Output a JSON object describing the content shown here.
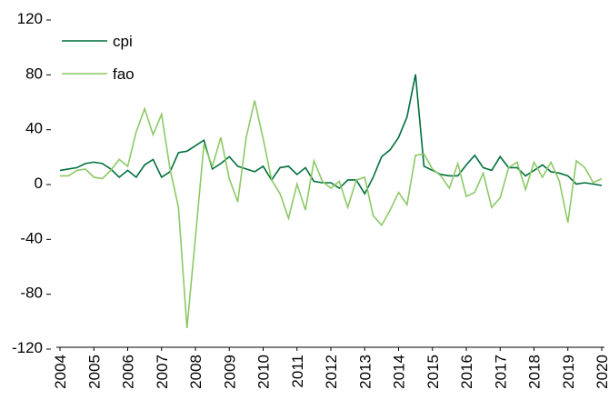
{
  "chart_data": {
    "type": "line",
    "x": [
      2004,
      2004.25,
      2004.5,
      2004.75,
      2005,
      2005.25,
      2005.5,
      2005.75,
      2006,
      2006.25,
      2006.5,
      2006.75,
      2007,
      2007.25,
      2007.5,
      2007.75,
      2008,
      2008.25,
      2008.5,
      2008.75,
      2009,
      2009.25,
      2009.5,
      2009.75,
      2010,
      2010.25,
      2010.5,
      2010.75,
      2011,
      2011.25,
      2011.5,
      2011.75,
      2012,
      2012.25,
      2012.5,
      2012.75,
      2013,
      2013.25,
      2013.5,
      2013.75,
      2014,
      2014.25,
      2014.5,
      2014.75,
      2015,
      2015.25,
      2015.5,
      2015.75,
      2016,
      2016.25,
      2016.5,
      2016.75,
      2017,
      2017.25,
      2017.5,
      2017.75,
      2018,
      2018.25,
      2018.5,
      2018.75,
      2019,
      2019.25,
      2019.5,
      2019.75,
      2020
    ],
    "series": [
      {
        "name": "cpi",
        "color": "#00703c",
        "values": [
          9,
          10,
          11,
          14,
          15,
          14,
          10,
          4,
          9,
          4,
          13,
          17,
          4,
          8,
          22,
          23,
          27,
          31,
          10,
          14,
          19,
          12,
          10,
          8,
          12,
          2,
          11,
          12,
          6,
          11,
          1,
          0,
          0,
          -4,
          2,
          2,
          -8,
          4,
          19,
          24,
          33,
          48,
          79,
          12,
          9,
          6,
          5,
          5,
          13,
          20,
          11,
          9,
          19,
          11,
          11,
          5,
          9,
          13,
          8,
          7,
          5,
          -1,
          0,
          -1,
          -2
        ]
      },
      {
        "name": "fao",
        "color": "#8cc966",
        "values": [
          5,
          5,
          9,
          10,
          4,
          3,
          9,
          17,
          12,
          37,
          54,
          35,
          50,
          10,
          -18,
          -106,
          -40,
          28,
          12,
          33,
          3,
          -14,
          33,
          60,
          32,
          2,
          -8,
          -26,
          -1,
          -20,
          16,
          1,
          -4,
          1,
          -18,
          2,
          4,
          -24,
          -31,
          -20,
          -7,
          -16,
          20,
          21,
          10,
          5,
          -4,
          14,
          -10,
          -7,
          7,
          -18,
          -11,
          11,
          15,
          -5,
          15,
          4,
          15,
          1,
          -29,
          16,
          11,
          0,
          3
        ]
      }
    ],
    "xlim": [
      2004,
      2020
    ],
    "xticks": [
      2004,
      2005,
      2006,
      2007,
      2008,
      2009,
      2010,
      2011,
      2012,
      2013,
      2014,
      2015,
      2016,
      2017,
      2018,
      2019,
      2020
    ],
    "ylim": [
      -120,
      120
    ],
    "yticks": [
      -120,
      -80,
      -40,
      0,
      40,
      80,
      120
    ],
    "legend": "top-left"
  }
}
